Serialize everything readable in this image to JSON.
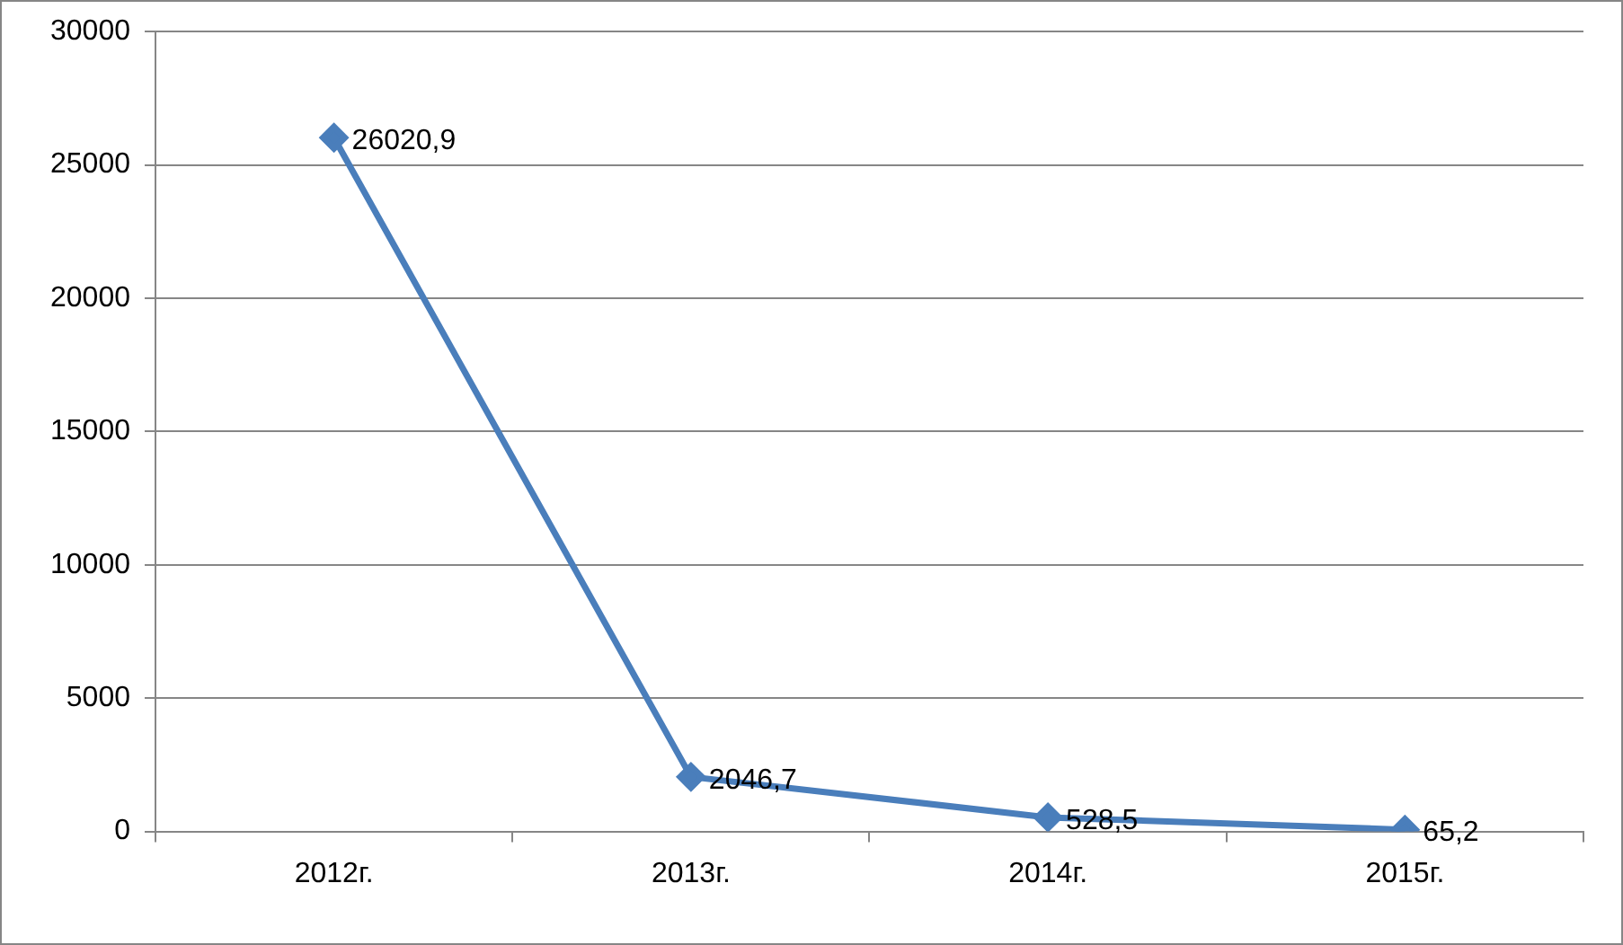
{
  "chart_data": {
    "type": "line",
    "categories": [
      "2012г.",
      "2013г.",
      "2014г.",
      "2015г."
    ],
    "series": [
      {
        "color": "#4a7ebb",
        "values": [
          26020.9,
          2046.7,
          528.5,
          65.2
        ],
        "value_labels": [
          "26020,9",
          "2046,7",
          "528,5",
          "65,2"
        ]
      }
    ],
    "ylim": [
      0,
      30000
    ],
    "yticks": [
      0,
      5000,
      10000,
      15000,
      20000,
      25000,
      30000
    ],
    "grid": "y",
    "legend": false,
    "marker": "diamond",
    "line_style": "solid"
  }
}
